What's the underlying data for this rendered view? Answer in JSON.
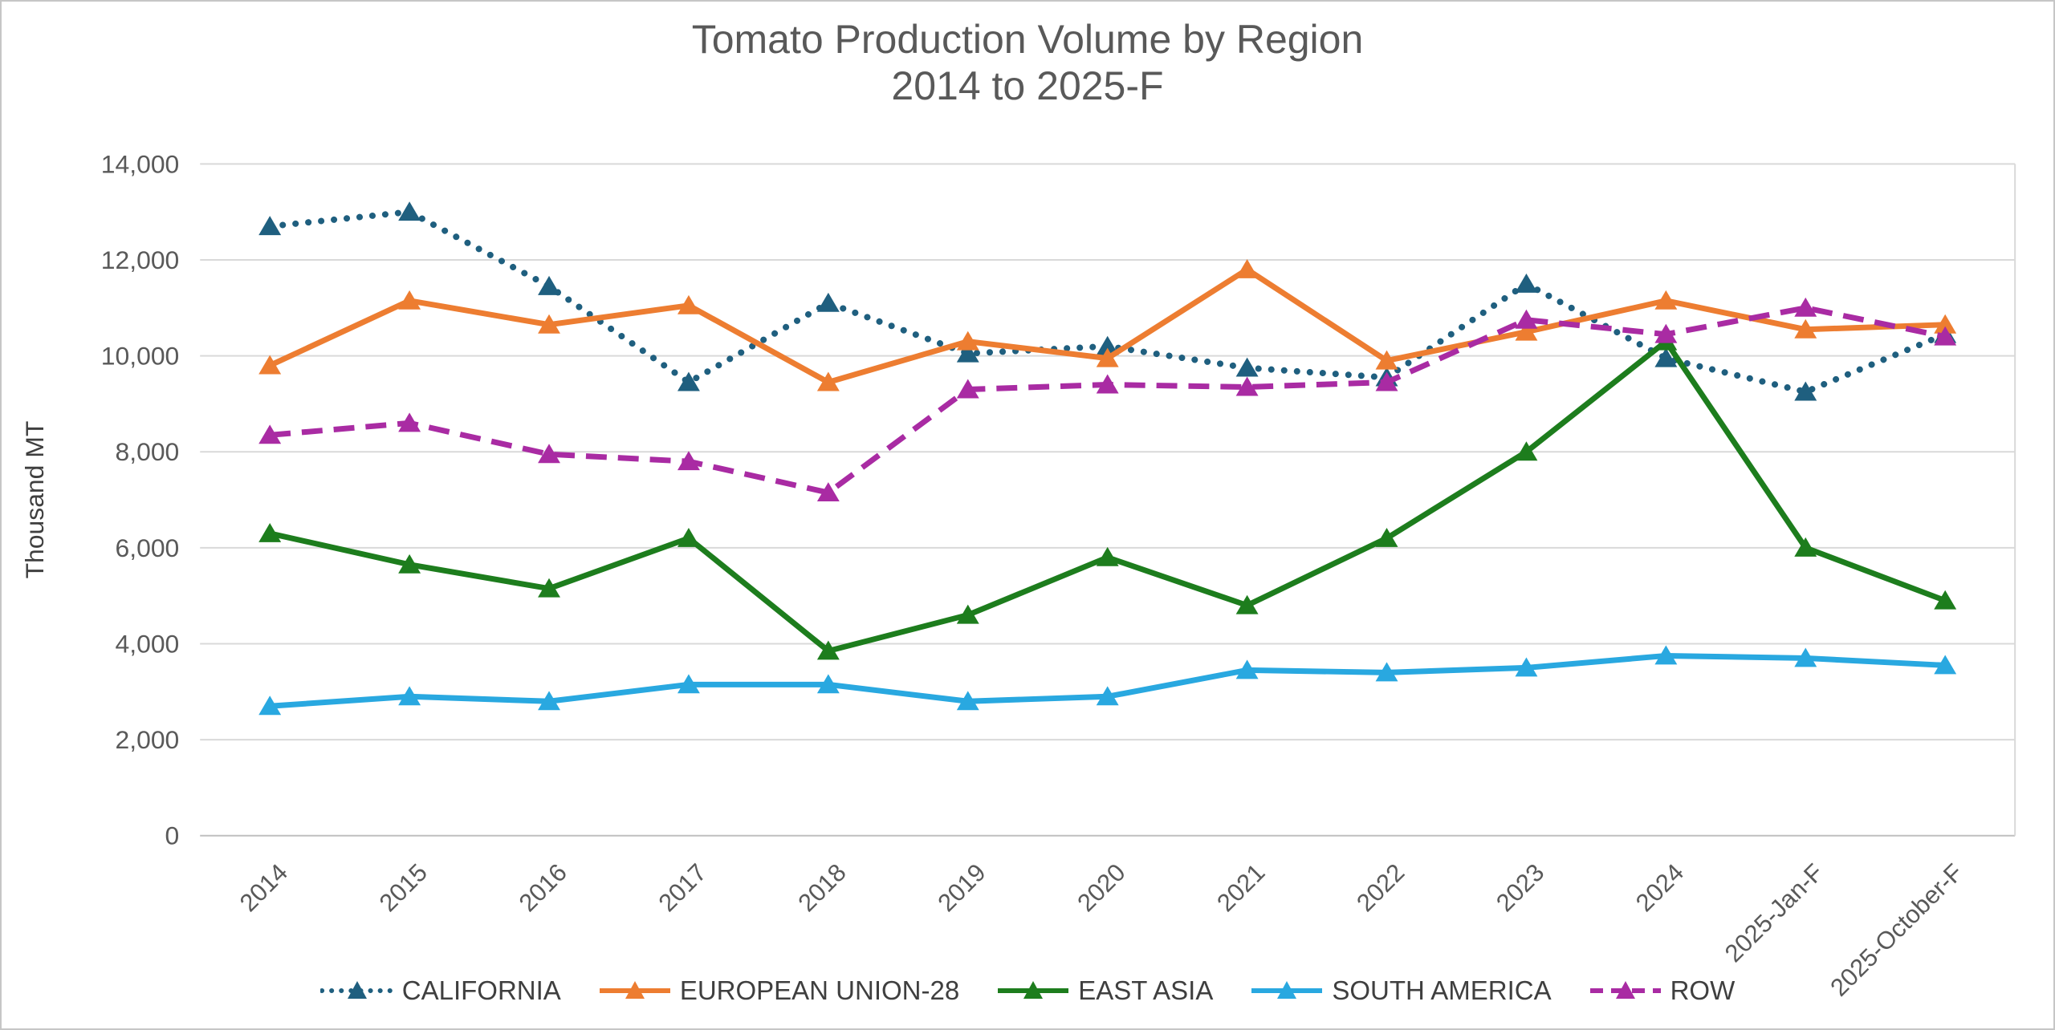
{
  "window": {
    "background": "#ffffff",
    "border_color": "#c6c6c6"
  },
  "styles": {
    "title_color": "#595959",
    "tick_label_color": "#595959",
    "axis_title_color": "#3f3f3f",
    "legend_text_color": "#3f3f3f",
    "gridline_color": "#d9d9d9",
    "axis_line_color": "#bfbfbf"
  },
  "chart_data": {
    "type": "line",
    "title": "Tomato Production Volume by Region",
    "subtitle": "2014 to 2025-F",
    "xlabel": "",
    "ylabel": "Thousand MT",
    "grid": true,
    "legend_position": "bottom",
    "categories": [
      "2014",
      "2015",
      "2016",
      "2017",
      "2018",
      "2019",
      "2020",
      "2021",
      "2022",
      "2023",
      "2024",
      "2025-Jan-F",
      "2025-October-F"
    ],
    "y_axis": {
      "min": 0,
      "max": 14000,
      "step": 2000,
      "tick_labels": [
        "0",
        "2,000",
        "4,000",
        "6,000",
        "8,000",
        "10,000",
        "12,000",
        "14,000"
      ]
    },
    "series": [
      {
        "name": "CALIFORNIA",
        "color": "#1F5F7F",
        "line_style": "dotted",
        "marker": "triangle",
        "values": [
          12700,
          13000,
          11450,
          9450,
          11100,
          10050,
          10200,
          9750,
          9550,
          11500,
          9950,
          9250,
          10450
        ]
      },
      {
        "name": "EUROPEAN UNION-28",
        "color": "#ED7D31",
        "line_style": "solid",
        "marker": "triangle",
        "values": [
          9800,
          11150,
          10650,
          11050,
          9450,
          10300,
          9950,
          11800,
          9900,
          10500,
          11150,
          10550,
          10650
        ]
      },
      {
        "name": "EAST ASIA",
        "color": "#1D7D1D",
        "line_style": "solid",
        "marker": "triangle",
        "values": [
          6300,
          5650,
          5150,
          6200,
          3850,
          4600,
          5800,
          4800,
          6200,
          8000,
          10300,
          6000,
          4900
        ]
      },
      {
        "name": "SOUTH AMERICA",
        "color": "#29A8E0",
        "line_style": "solid",
        "marker": "triangle",
        "values": [
          2700,
          2900,
          2800,
          3150,
          3150,
          2800,
          2900,
          3450,
          3400,
          3500,
          3750,
          3700,
          3550
        ]
      },
      {
        "name": "ROW",
        "color": "#A92BA3",
        "line_style": "dashed",
        "marker": "triangle",
        "values": [
          8350,
          8600,
          7950,
          7800,
          7150,
          9300,
          9400,
          9350,
          9450,
          10750,
          10450,
          11000,
          10400
        ]
      }
    ]
  }
}
